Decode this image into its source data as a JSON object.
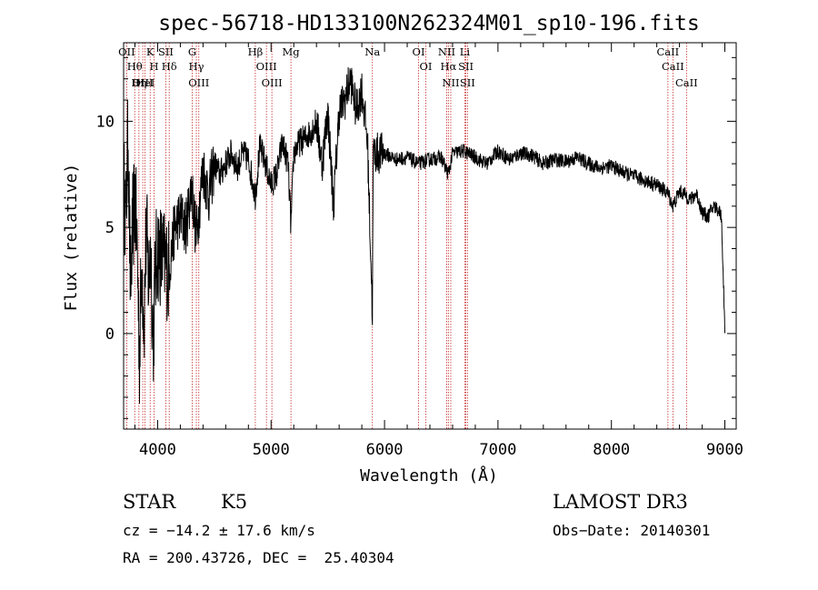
{
  "chart_data": {
    "type": "line",
    "title": "spec-56718-HD133100N262324M01_sp10-196.fits",
    "xlabel": "Wavelength (Å)",
    "ylabel": "Flux (relative)",
    "xlim": [
      3700,
      9100
    ],
    "ylim": [
      -4.5,
      13.7
    ],
    "xticks": [
      4000,
      5000,
      6000,
      7000,
      8000,
      9000
    ],
    "yticks": [
      0,
      5,
      10
    ],
    "series": [
      {
        "name": "spectrum",
        "x": [
          3700,
          3720,
          3740,
          3760,
          3780,
          3800,
          3820,
          3840,
          3860,
          3880,
          3900,
          3920,
          3940,
          3960,
          3980,
          4000,
          4050,
          4100,
          4150,
          4200,
          4250,
          4300,
          4340,
          4400,
          4450,
          4500,
          4550,
          4600,
          4650,
          4700,
          4750,
          4800,
          4861,
          4900,
          4950,
          5000,
          5050,
          5100,
          5150,
          5175,
          5200,
          5250,
          5300,
          5350,
          5400,
          5450,
          5500,
          5550,
          5600,
          5650,
          5700,
          5750,
          5800,
          5850,
          5893,
          5900,
          5950,
          6000,
          6100,
          6200,
          6300,
          6400,
          6500,
          6563,
          6600,
          6700,
          6800,
          6900,
          7000,
          7100,
          7200,
          7300,
          7400,
          7500,
          7600,
          7700,
          7800,
          7900,
          8000,
          8100,
          8200,
          8300,
          8400,
          8500,
          8542,
          8600,
          8662,
          8700,
          8750,
          8800,
          8850,
          8900,
          8950,
          8970,
          9000
        ],
        "values": [
          7.0,
          5.5,
          9.5,
          2.0,
          5.0,
          6.5,
          4.0,
          -1.0,
          3.5,
          0.5,
          5.0,
          2.5,
          4.0,
          -0.5,
          3.0,
          4.0,
          3.5,
          3.0,
          5.0,
          5.5,
          5.0,
          7.0,
          4.5,
          7.8,
          6.5,
          8.0,
          7.5,
          8.0,
          8.5,
          7.8,
          8.5,
          8.2,
          6.5,
          8.8,
          8.0,
          7.0,
          7.5,
          9.0,
          8.0,
          5.0,
          8.5,
          9.0,
          9.2,
          9.5,
          10.0,
          8.0,
          10.5,
          6.0,
          10.5,
          11.0,
          12.0,
          10.5,
          11.5,
          9.0,
          1.0,
          8.5,
          8.5,
          8.5,
          8.2,
          8.3,
          8.0,
          8.2,
          8.3,
          7.5,
          8.5,
          8.6,
          8.3,
          8.0,
          8.6,
          8.2,
          8.5,
          8.4,
          8.0,
          8.2,
          8.1,
          8.3,
          8.0,
          7.8,
          7.9,
          7.6,
          7.4,
          7.2,
          7.0,
          6.6,
          6.0,
          6.7,
          6.5,
          6.3,
          6.6,
          5.7,
          5.5,
          6.0,
          5.8,
          5.5,
          0.2
        ]
      }
    ],
    "spectral_lines": [
      {
        "label": "Hθ",
        "wavelength": 3798
      },
      {
        "label": "OII",
        "wavelength": 3727
      },
      {
        "label": "OIII",
        "wavelength": 3869
      },
      {
        "label": "K",
        "wavelength": 3934
      },
      {
        "label": "HeI",
        "wavelength": 3889
      },
      {
        "label": "Hη",
        "wavelength": 3835
      },
      {
        "label": "H",
        "wavelength": 3969
      },
      {
        "label": "Hδ",
        "wavelength": 4102
      },
      {
        "label": "SII",
        "wavelength": 4072
      },
      {
        "label": "OIII",
        "wavelength": 4363
      },
      {
        "label": "Hγ",
        "wavelength": 4341
      },
      {
        "label": "G",
        "wavelength": 4305
      },
      {
        "label": "Hβ",
        "wavelength": 4861
      },
      {
        "label": "OIII",
        "wavelength": 5007
      },
      {
        "label": "OIII",
        "wavelength": 4959
      },
      {
        "label": "Mg",
        "wavelength": 5175
      },
      {
        "label": "Na",
        "wavelength": 5893
      },
      {
        "label": "OI",
        "wavelength": 6300
      },
      {
        "label": "OI",
        "wavelength": 6364
      },
      {
        "label": "Hα",
        "wavelength": 6563
      },
      {
        "label": "NII",
        "wavelength": 6548
      },
      {
        "label": "NII",
        "wavelength": 6584
      },
      {
        "label": "SII",
        "wavelength": 6717
      },
      {
        "label": "Li",
        "wavelength": 6708
      },
      {
        "label": "SII",
        "wavelength": 6731
      },
      {
        "label": "CaII",
        "wavelength": 8542
      },
      {
        "label": "CaII",
        "wavelength": 8498
      },
      {
        "label": "CaII",
        "wavelength": 8662
      }
    ],
    "line_color": "#000000",
    "marker_color": "#c62828"
  },
  "info": {
    "object_class": "STAR",
    "subclass": "K5",
    "survey": "LAMOST DR3",
    "redshift": "cz = −14.2 ± 17.6 km/s",
    "obs_date": "Obs−Date: 20140301",
    "coords": "RA = 200.43726, DEC =  25.40304"
  }
}
